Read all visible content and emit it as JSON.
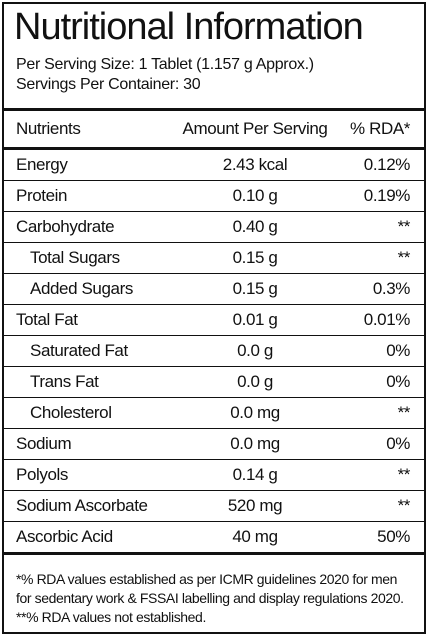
{
  "header": {
    "title": "Nutritional Information",
    "serving_size": "Per Serving Size: 1 Tablet (1.157 g Approx.)",
    "servings_per_container": "Servings Per Container: 30"
  },
  "table": {
    "columns": [
      "Nutrients",
      "Amount Per Serving",
      "% RDA*"
    ],
    "rows": [
      [
        "Energy",
        "2.43 kcal",
        "0.12%"
      ],
      [
        "Protein",
        "0.10 g",
        "0.19%"
      ],
      [
        "Carbohydrate",
        "0.40 g",
        "**"
      ],
      [
        "Total Sugars",
        "0.15 g",
        "**"
      ],
      [
        "Added Sugars",
        "0.15 g",
        "0.3%"
      ],
      [
        "Total Fat",
        "0.01 g",
        "0.01%"
      ],
      [
        "Saturated Fat",
        "0.0 g",
        "0%"
      ],
      [
        "Trans Fat",
        "0.0 g",
        "0%"
      ],
      [
        "Cholesterol",
        "0.0 mg",
        "**"
      ],
      [
        "Sodium",
        "0.0 mg",
        "0%"
      ],
      [
        "Polyols",
        "0.14 g",
        "**"
      ],
      [
        "Sodium Ascorbate",
        "520 mg",
        "**"
      ],
      [
        "Ascorbic Acid",
        "40 mg",
        "50%"
      ]
    ]
  },
  "footnotes": [
    "*% RDA values established as per ICMR guidelines 2020 for men",
    "for sedentary work & FSSAI labelling and display regulations 2020.",
    "**% RDA values not established."
  ]
}
